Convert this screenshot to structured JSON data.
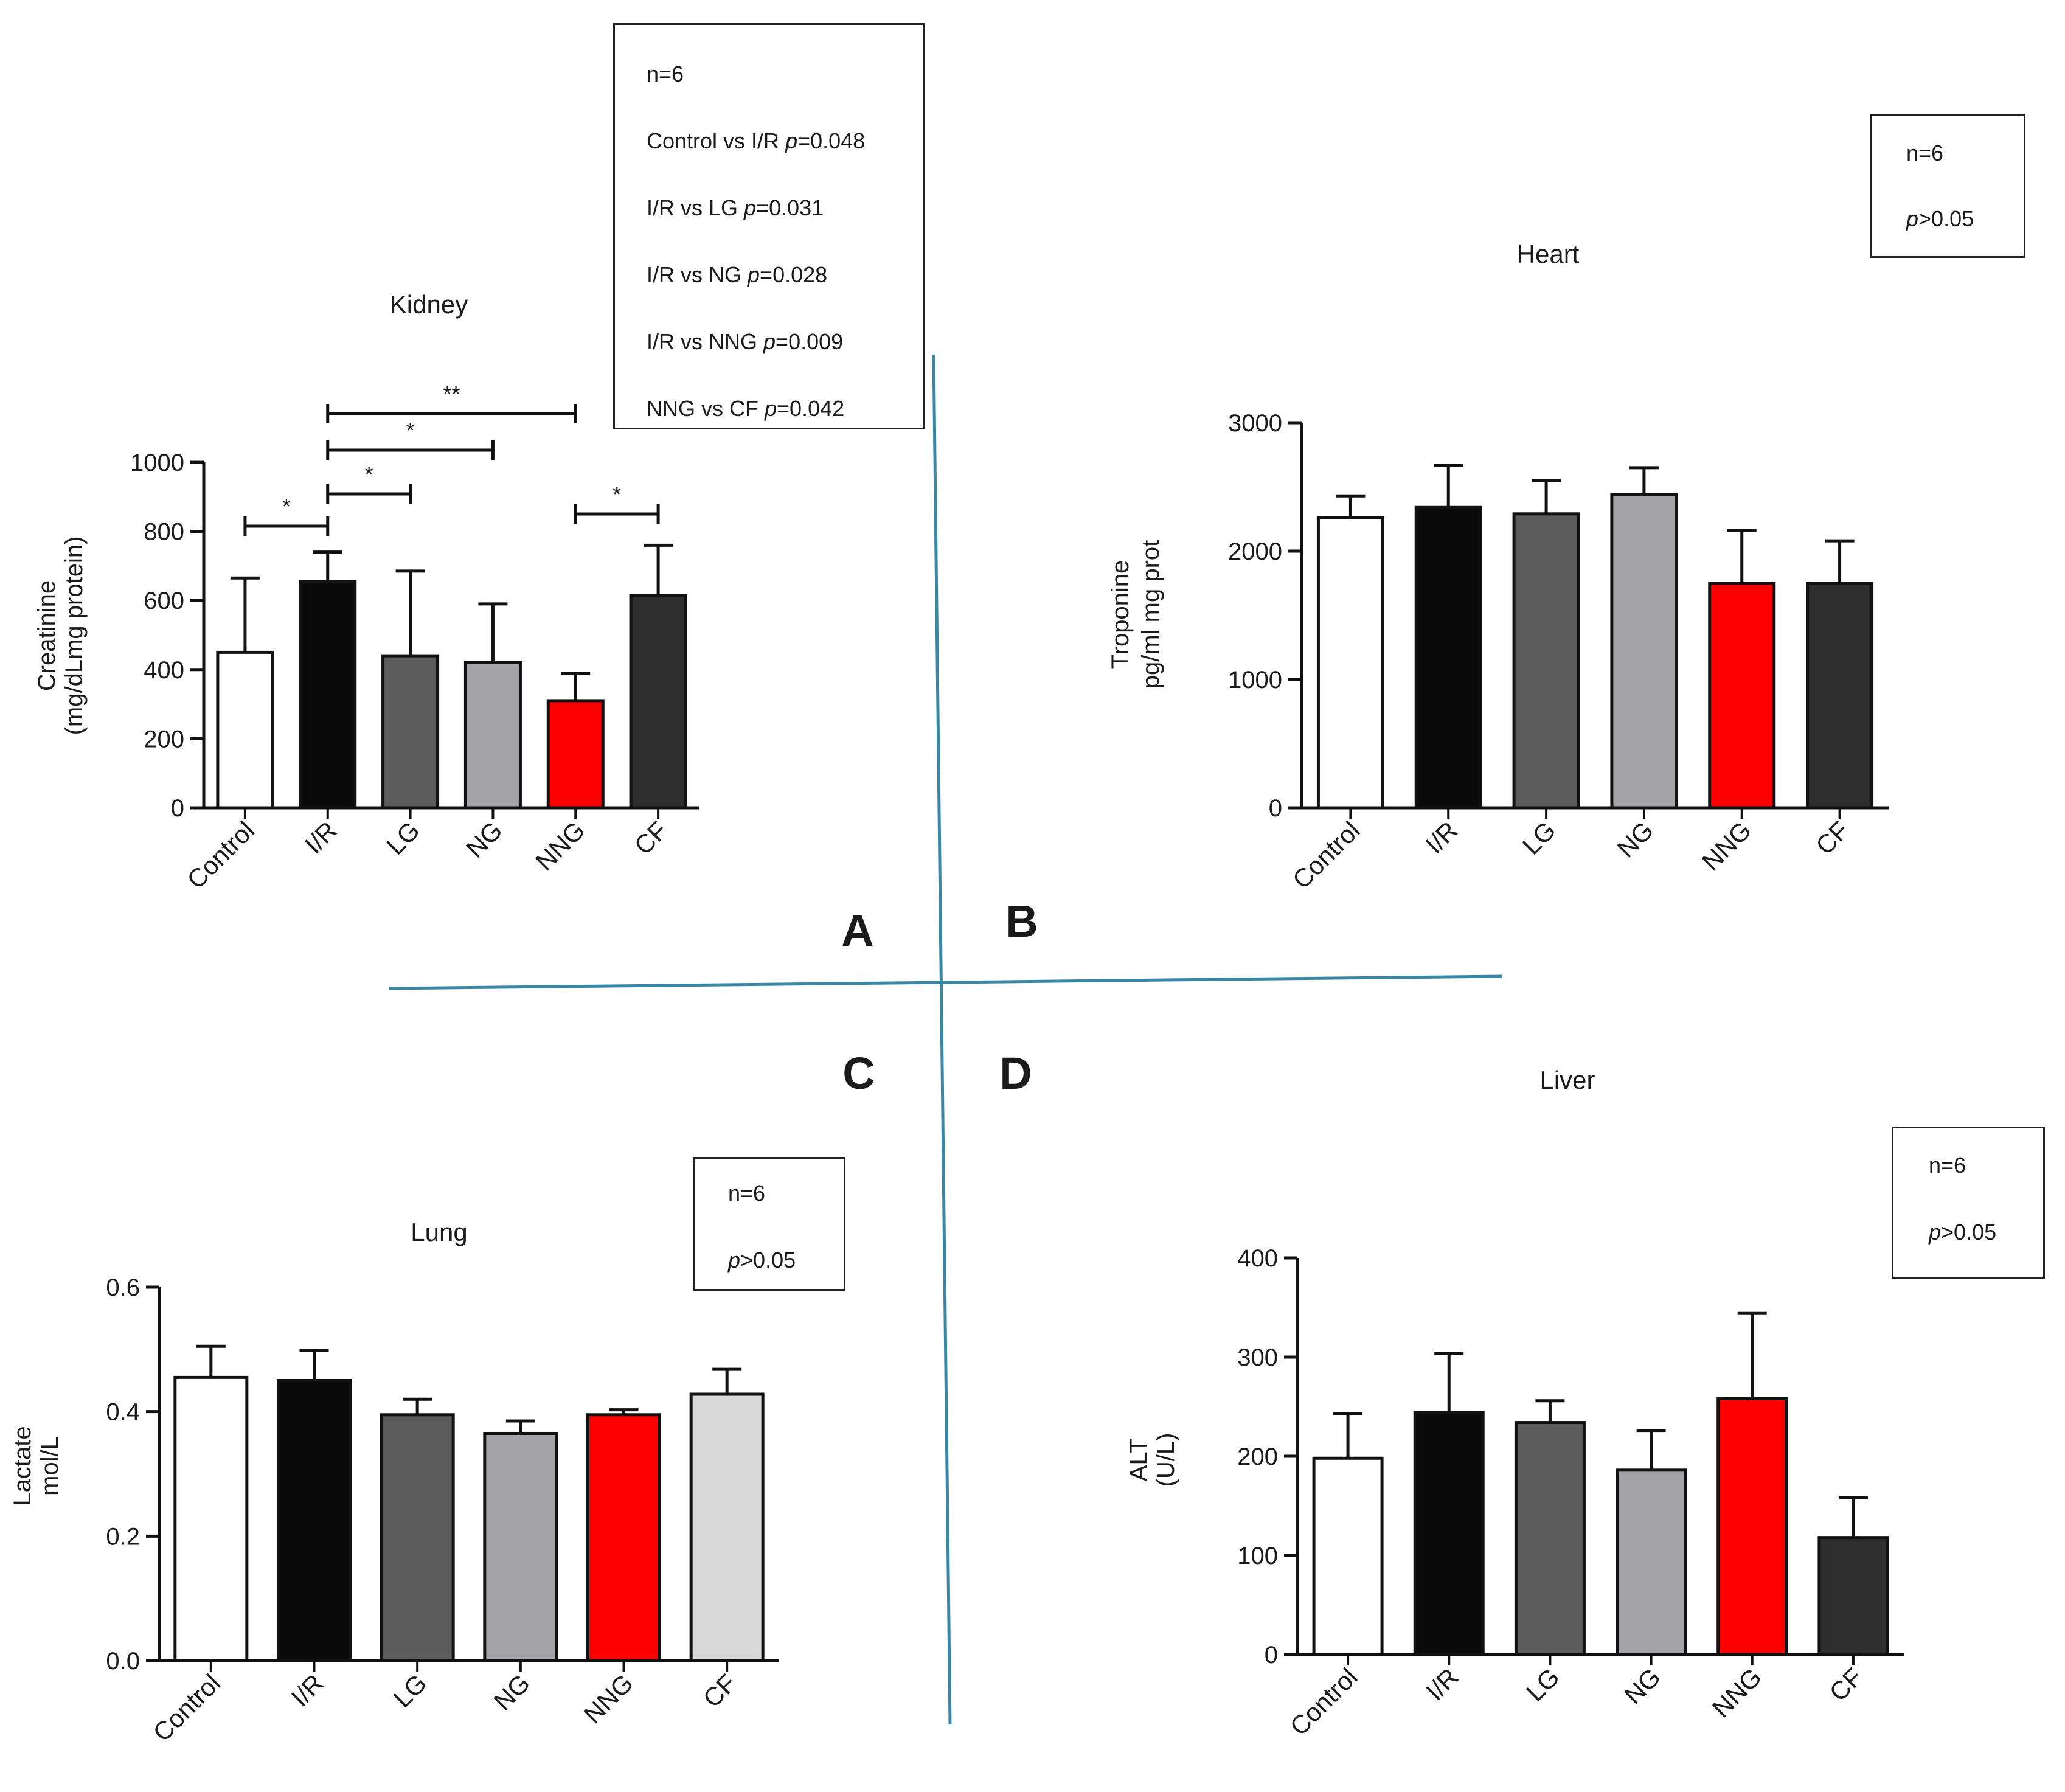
{
  "panel_letters": [
    "A",
    "B",
    "C",
    "D"
  ],
  "colors": {
    "white": "#ffffff",
    "black": "#0a0a0a",
    "dark_gray": "#5c5c5c",
    "mid_gray": "#a3a3a8",
    "red": "#ff0000",
    "charcoal": "#2e2e2e",
    "light_gray": "#d9d9d9",
    "divider": "#3a87a5"
  },
  "stat_boxes": {
    "kidney": {
      "n": "n=6",
      "comparisons": [
        {
          "label": "Control vs I/R ",
          "p_symbol": "p",
          "value": "=0.048"
        },
        {
          "label": "I/R vs LG ",
          "p_symbol": "p",
          "value": "=0.031"
        },
        {
          "label": "I/R vs NG ",
          "p_symbol": "p",
          "value": "=0.028"
        },
        {
          "label": "I/R vs NNG ",
          "p_symbol": "p",
          "value": "=0.009"
        },
        {
          "label": "NNG vs CF ",
          "p_symbol": "p",
          "value": "=0.042"
        }
      ]
    },
    "heart": {
      "n": "n=6",
      "p_symbol": "p",
      "value": ">0.05"
    },
    "lung": {
      "n": "n=6",
      "p_symbol": "p",
      "value": ">0.05"
    },
    "liver": {
      "n": "n=6",
      "p_symbol": "p",
      "value": ">0.05"
    }
  },
  "chart_data": [
    {
      "panel": "A",
      "type": "bar",
      "title": "Kidney",
      "ylabel_lines": [
        "Creatinine",
        "(mg/dLmg protein)"
      ],
      "categories": [
        "Control",
        "I/R",
        "LG",
        "NG",
        "NNG",
        "CF"
      ],
      "values": [
        450,
        655,
        440,
        420,
        310,
        615
      ],
      "errors": [
        215,
        85,
        245,
        170,
        80,
        145
      ],
      "colors": [
        "#ffffff",
        "#0a0a0a",
        "#5c5c5c",
        "#a3a3a8",
        "#ff0000",
        "#2e2e2e"
      ],
      "ylim": [
        0,
        1000
      ],
      "yticks": [
        "0",
        "200",
        "400",
        "600",
        "800",
        "1000"
      ],
      "significance": [
        {
          "from": 0,
          "to": 1,
          "label": "*"
        },
        {
          "from": 1,
          "to": 2,
          "label": "*"
        },
        {
          "from": 1,
          "to": 3,
          "label": "*"
        },
        {
          "from": 1,
          "to": 4,
          "label": "**"
        },
        {
          "from": 4,
          "to": 5,
          "label": "*"
        }
      ]
    },
    {
      "panel": "B",
      "type": "bar",
      "title": "Heart",
      "ylabel_lines": [
        "Troponine",
        "pg/ml mg prot"
      ],
      "categories": [
        "Control",
        "I/R",
        "LG",
        "NG",
        "NNG",
        "CF"
      ],
      "values": [
        2260,
        2340,
        2290,
        2440,
        1750,
        1750
      ],
      "errors": [
        170,
        330,
        260,
        210,
        410,
        330
      ],
      "colors": [
        "#ffffff",
        "#0a0a0a",
        "#5c5c5c",
        "#a3a3a8",
        "#ff0000",
        "#2e2e2e"
      ],
      "ylim": [
        0,
        3000
      ],
      "yticks": [
        "0",
        "1000",
        "2000",
        "3000"
      ],
      "significance": []
    },
    {
      "panel": "C",
      "type": "bar",
      "title": "Lung",
      "ylabel_lines": [
        "Lactate",
        "mol/L"
      ],
      "categories": [
        "Control",
        "I/R",
        "LG",
        "NG",
        "NNG",
        "CF"
      ],
      "values": [
        0.455,
        0.45,
        0.395,
        0.365,
        0.395,
        0.428
      ],
      "errors": [
        0.05,
        0.048,
        0.025,
        0.02,
        0.008,
        0.04
      ],
      "colors": [
        "#ffffff",
        "#0a0a0a",
        "#5c5c5c",
        "#a3a3a8",
        "#ff0000",
        "#d9d9d9"
      ],
      "ylim": [
        0,
        0.6
      ],
      "yticks": [
        "0.0",
        "0.2",
        "0.4",
        "0.6"
      ],
      "significance": []
    },
    {
      "panel": "D",
      "type": "bar",
      "title": "Liver",
      "ylabel_lines": [
        "ALT",
        "(U/L)"
      ],
      "categories": [
        "Control",
        "I/R",
        "LG",
        "NG",
        "NNG",
        "CF"
      ],
      "values": [
        198,
        244,
        234,
        186,
        258,
        118
      ],
      "errors": [
        45,
        60,
        22,
        40,
        86,
        40
      ],
      "colors": [
        "#ffffff",
        "#0a0a0a",
        "#5c5c5c",
        "#a3a3a8",
        "#ff0000",
        "#2e2e2e"
      ],
      "ylim": [
        0,
        400
      ],
      "yticks": [
        "0",
        "100",
        "200",
        "300",
        "400"
      ],
      "significance": []
    }
  ]
}
